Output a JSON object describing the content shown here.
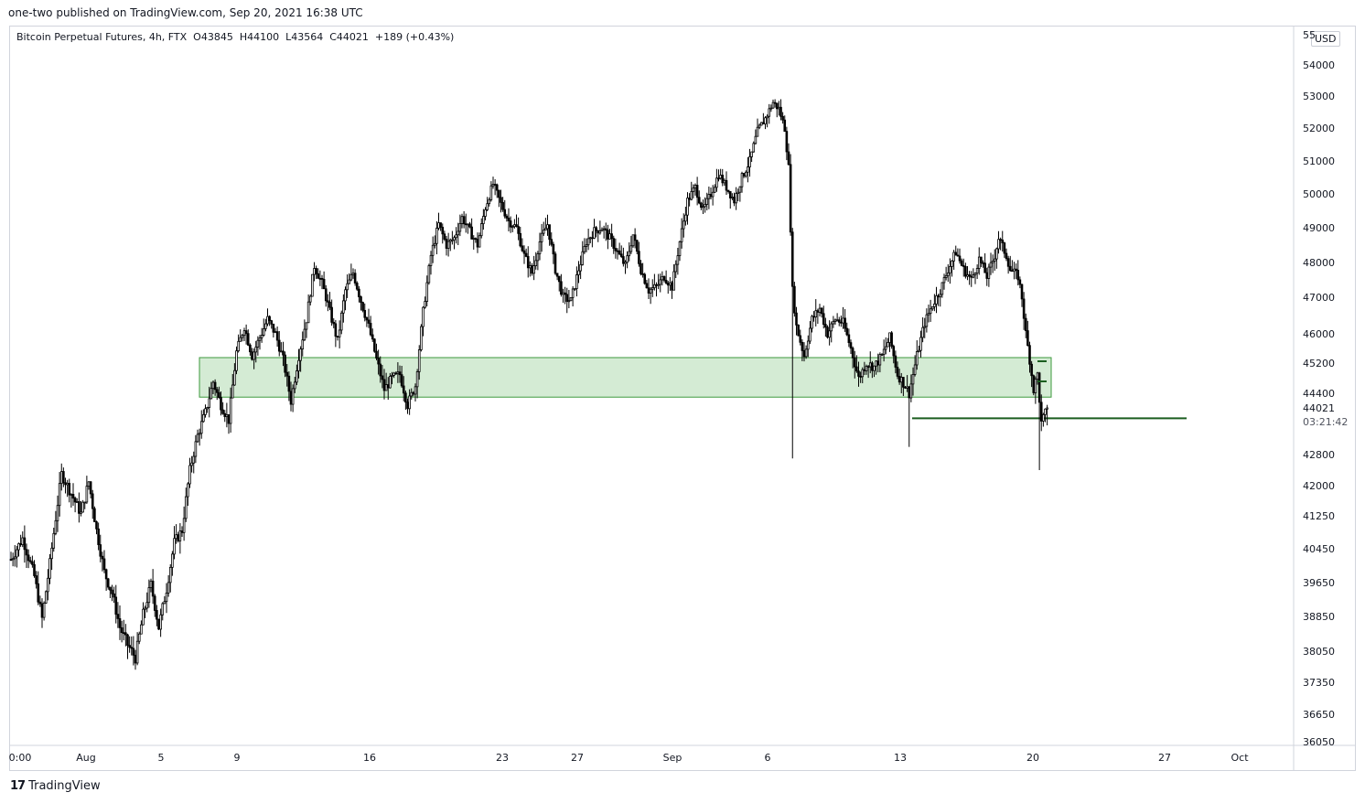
{
  "header": {
    "published_line": "one-two published on TradingView.com, Sep 20, 2021 16:38 UTC"
  },
  "symbol_bar": {
    "text": "Bitcoin Perpetual Futures, 4h, FTX  O43845  H44100  L43564  C44021  +189 (+0.43%)"
  },
  "currency": "USD",
  "price_axis": {
    "top_clipped_label": "55",
    "ticks": [
      "54000",
      "53000",
      "52000",
      "51000",
      "50000",
      "49000",
      "48000",
      "47000",
      "46000",
      "45200",
      "44400",
      "42800",
      "42000",
      "41250",
      "40450",
      "39650",
      "38850",
      "38050",
      "37350",
      "36650",
      "36050"
    ],
    "last_price": "44021",
    "countdown": "03:21:42"
  },
  "time_axis": {
    "labels": [
      "0:00",
      "Aug",
      "5",
      "9",
      "16",
      "23",
      "27",
      "Sep",
      "6",
      "13",
      "20",
      "27",
      "Oct"
    ]
  },
  "footer": {
    "brand": "TradingView",
    "logo_glyph": "17"
  },
  "colors": {
    "zone_fill": "#cfe9cf",
    "zone_border": "#3d9a3d",
    "support_line": "#1b5e20",
    "candle": "#000000",
    "grid_border": "#d1d4dc"
  },
  "chart_data": {
    "type": "candlestick",
    "symbol": "Bitcoin Perpetual Futures",
    "interval": "4h",
    "exchange": "FTX",
    "ohlc": {
      "open": 43845,
      "high": 44100,
      "low": 43564,
      "close": 44021,
      "change": 189,
      "change_pct": 0.43
    },
    "range_low": 37300,
    "range_high": 52900,
    "path_points": [
      [
        0,
        40200
      ],
      [
        6,
        40700
      ],
      [
        12,
        39800
      ],
      [
        16,
        38800
      ],
      [
        20,
        40100
      ],
      [
        26,
        42300
      ],
      [
        30,
        41900
      ],
      [
        36,
        41300
      ],
      [
        40,
        42100
      ],
      [
        44,
        40900
      ],
      [
        48,
        39900
      ],
      [
        52,
        39400
      ],
      [
        56,
        38600
      ],
      [
        60,
        38200
      ],
      [
        64,
        37900
      ],
      [
        68,
        38900
      ],
      [
        72,
        39600
      ],
      [
        76,
        38600
      ],
      [
        80,
        39500
      ],
      [
        84,
        40600
      ],
      [
        88,
        40900
      ],
      [
        92,
        42400
      ],
      [
        96,
        43300
      ],
      [
        100,
        43900
      ],
      [
        104,
        44700
      ],
      [
        108,
        44100
      ],
      [
        112,
        43700
      ],
      [
        116,
        45500
      ],
      [
        120,
        46200
      ],
      [
        124,
        45400
      ],
      [
        128,
        45900
      ],
      [
        132,
        46400
      ],
      [
        136,
        46000
      ],
      [
        140,
        45300
      ],
      [
        144,
        44200
      ],
      [
        148,
        45400
      ],
      [
        152,
        46400
      ],
      [
        156,
        47900
      ],
      [
        160,
        47400
      ],
      [
        164,
        46600
      ],
      [
        168,
        45800
      ],
      [
        172,
        47200
      ],
      [
        176,
        47700
      ],
      [
        180,
        46900
      ],
      [
        184,
        46200
      ],
      [
        188,
        45300
      ],
      [
        192,
        44500
      ],
      [
        196,
        44800
      ],
      [
        200,
        44900
      ],
      [
        204,
        44100
      ],
      [
        208,
        44600
      ],
      [
        212,
        46600
      ],
      [
        216,
        48200
      ],
      [
        220,
        49100
      ],
      [
        224,
        48500
      ],
      [
        228,
        48700
      ],
      [
        232,
        49300
      ],
      [
        236,
        48900
      ],
      [
        240,
        48500
      ],
      [
        244,
        49600
      ],
      [
        248,
        50300
      ],
      [
        252,
        49700
      ],
      [
        256,
        49200
      ],
      [
        260,
        49000
      ],
      [
        264,
        48200
      ],
      [
        268,
        47700
      ],
      [
        272,
        48600
      ],
      [
        276,
        49100
      ],
      [
        280,
        47800
      ],
      [
        284,
        47000
      ],
      [
        288,
        46900
      ],
      [
        292,
        47800
      ],
      [
        296,
        48600
      ],
      [
        300,
        48900
      ],
      [
        304,
        49000
      ],
      [
        308,
        48700
      ],
      [
        312,
        48300
      ],
      [
        316,
        47900
      ],
      [
        320,
        48800
      ],
      [
        324,
        47800
      ],
      [
        328,
        47200
      ],
      [
        332,
        47300
      ],
      [
        336,
        47600
      ],
      [
        340,
        47300
      ],
      [
        344,
        48600
      ],
      [
        348,
        49800
      ],
      [
        352,
        50200
      ],
      [
        356,
        49500
      ],
      [
        360,
        50000
      ],
      [
        364,
        50600
      ],
      [
        368,
        50200
      ],
      [
        372,
        49800
      ],
      [
        376,
        50500
      ],
      [
        380,
        51000
      ],
      [
        384,
        51900
      ],
      [
        388,
        52300
      ],
      [
        392,
        52800
      ],
      [
        395,
        52600
      ],
      [
        398,
        52000
      ],
      [
        400,
        50800
      ],
      [
        402,
        47200
      ],
      [
        404,
        46200
      ],
      [
        408,
        45400
      ],
      [
        412,
        46400
      ],
      [
        416,
        46700
      ],
      [
        420,
        46000
      ],
      [
        424,
        46400
      ],
      [
        428,
        46300
      ],
      [
        432,
        45600
      ],
      [
        436,
        44800
      ],
      [
        440,
        45200
      ],
      [
        444,
        45100
      ],
      [
        448,
        45400
      ],
      [
        452,
        45900
      ],
      [
        456,
        44900
      ],
      [
        460,
        44600
      ],
      [
        462,
        44400
      ],
      [
        466,
        45400
      ],
      [
        470,
        46300
      ],
      [
        474,
        46800
      ],
      [
        478,
        47200
      ],
      [
        482,
        47800
      ],
      [
        486,
        48300
      ],
      [
        490,
        47800
      ],
      [
        494,
        47500
      ],
      [
        498,
        48100
      ],
      [
        502,
        47600
      ],
      [
        506,
        48200
      ],
      [
        508,
        48700
      ],
      [
        512,
        48200
      ],
      [
        514,
        47800
      ],
      [
        518,
        47600
      ],
      [
        520,
        47000
      ],
      [
        522,
        46000
      ],
      [
        524,
        45300
      ],
      [
        526,
        44500
      ],
      [
        528,
        44900
      ],
      [
        530,
        43600
      ],
      [
        533,
        44021
      ]
    ],
    "spikes": [
      {
        "bar": 402,
        "low": 42700
      },
      {
        "bar": 462,
        "low": 43000
      },
      {
        "bar": 529,
        "low": 42400
      }
    ],
    "demand_zone": {
      "low": 44300,
      "high": 45350,
      "label": ""
    },
    "support_line": {
      "price": 43750
    }
  }
}
